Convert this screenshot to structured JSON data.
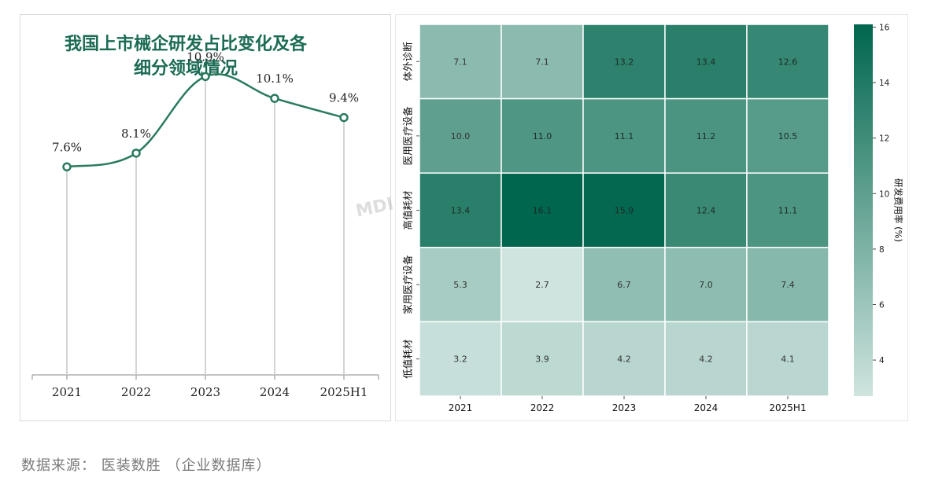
{
  "source": "数据来源：  医装数胜 （企业数据库）",
  "watermark": "MDI",
  "chart_data": [
    {
      "type": "line",
      "title": "我国上市械企研发占比变化及各细分领域情况",
      "title_lines": [
        "我国上市械企研发占比变化及各",
        "细分领域情况"
      ],
      "categories": [
        "2021",
        "2022",
        "2023",
        "2024",
        "2025H1"
      ],
      "values": [
        7.6,
        8.1,
        10.9,
        10.1,
        9.4
      ],
      "labels": [
        "7.6%",
        "8.1%",
        "10.9%",
        "10.1%",
        "9.4%"
      ],
      "color": "#2a7a60",
      "ylim": [
        0,
        12
      ],
      "grid": false
    },
    {
      "type": "heatmap",
      "x": [
        "2021",
        "2022",
        "2023",
        "2024",
        "2025H1"
      ],
      "y": [
        "体外诊断",
        "医用医疗设备",
        "高值耗材",
        "家用医疗设备",
        "低值耗材"
      ],
      "values": [
        [
          7.1,
          7.1,
          13.2,
          13.4,
          12.6
        ],
        [
          10.0,
          11.0,
          11.1,
          11.2,
          10.5
        ],
        [
          13.4,
          16.1,
          15.9,
          12.4,
          11.1
        ],
        [
          5.3,
          2.7,
          6.7,
          7.0,
          7.4
        ],
        [
          3.2,
          3.9,
          4.2,
          4.2,
          4.1
        ]
      ],
      "labels": [
        [
          "7.1",
          "7.1",
          "13.2",
          "13.4",
          "12.6"
        ],
        [
          "10.0",
          "11.0",
          "11.1",
          "11.2",
          "10.5"
        ],
        [
          "13.4",
          "16.1",
          "15.9",
          "12.4",
          "11.1"
        ],
        [
          "5.3",
          "2.7",
          "6.7",
          "7.0",
          "7.4"
        ],
        [
          "3.2",
          "3.9",
          "4.2",
          "4.2",
          "4.1"
        ]
      ],
      "colorbar": {
        "label": "研发费用率 (%)",
        "range": [
          2.7,
          16.1
        ],
        "ticks": [
          4,
          6,
          8,
          10,
          12,
          14,
          16
        ],
        "tick_labels": [
          "4",
          "6",
          "8",
          "10",
          "12",
          "14",
          "16"
        ],
        "color_low": "#cfe4df",
        "color_high": "#00664d"
      }
    }
  ]
}
